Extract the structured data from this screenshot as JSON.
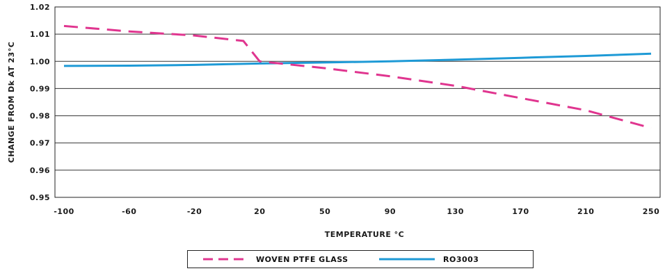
{
  "chart_data": {
    "type": "line",
    "xlabel": "TEMPERATURE °C",
    "ylabel": "CHANGE FROM Dk AT 23°C",
    "x_ticks": [
      "-100",
      "-60",
      "-20",
      "20",
      "50",
      "90",
      "130",
      "170",
      "210",
      "250"
    ],
    "y_ticks": [
      "0.95",
      "0.96",
      "0.97",
      "0.98",
      "0.99",
      "1.00",
      "1.01",
      "1.02"
    ],
    "ylim": [
      0.95,
      1.02
    ],
    "grid": "horizontal",
    "legend_position": "bottom",
    "series": [
      {
        "name": "WOVEN PTFE GLASS",
        "color": "#e0358f",
        "style": "dashed",
        "points": [
          {
            "x": -100,
            "y": 1.013
          },
          {
            "x": -60,
            "y": 1.011
          },
          {
            "x": -20,
            "y": 1.0095
          },
          {
            "x": 10,
            "y": 1.0075
          },
          {
            "x": 20,
            "y": 1.0
          },
          {
            "x": 50,
            "y": 0.9975
          },
          {
            "x": 90,
            "y": 0.9945
          },
          {
            "x": 130,
            "y": 0.991
          },
          {
            "x": 170,
            "y": 0.9865
          },
          {
            "x": 210,
            "y": 0.982
          },
          {
            "x": 250,
            "y": 0.9755
          }
        ]
      },
      {
        "name": "RO3003",
        "color": "#1e9ad6",
        "style": "solid",
        "points": [
          {
            "x": -100,
            "y": 0.9983
          },
          {
            "x": -60,
            "y": 0.9984
          },
          {
            "x": -20,
            "y": 0.9987
          },
          {
            "x": 20,
            "y": 0.9992
          },
          {
            "x": 50,
            "y": 0.9996
          },
          {
            "x": 90,
            "y": 1.0
          },
          {
            "x": 130,
            "y": 1.0006
          },
          {
            "x": 170,
            "y": 1.0013
          },
          {
            "x": 210,
            "y": 1.002
          },
          {
            "x": 250,
            "y": 1.0028
          }
        ]
      }
    ]
  }
}
